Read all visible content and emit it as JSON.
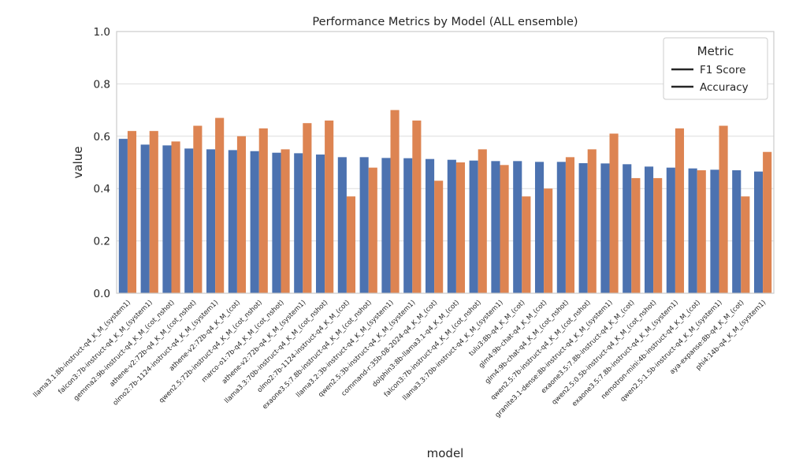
{
  "chart_data": {
    "type": "bar",
    "title": "Performance Metrics by Model (ALL ensemble)",
    "xlabel": "model",
    "ylabel": "value",
    "ylim": [
      0,
      1.0
    ],
    "yticks": [
      "0.0",
      "0.2",
      "0.4",
      "0.6",
      "0.8",
      "1.0"
    ],
    "grid": true,
    "legend": {
      "title": "Metric",
      "placement": "top-right",
      "entries": [
        "F1 Score",
        "Accuracy"
      ]
    },
    "categories": [
      "llama3.1:8b-instruct-q4_K_M_(system1)",
      "falcon3:7b-instruct-q4_K_M_(system1)",
      "gemma2:9b-instruct-q4_K_M_(cot_nshot)",
      "athene-v2:72b-q4_K_M_(cot_nshot)",
      "olmo2:7b-1124-instruct-q4_K_M_(system1)",
      "athene-v2:72b-q4_K_M_(cot)",
      "qwen2.5:72b-instruct-q4_K_M_(cot_nshot)",
      "marco-o1:7b-q4_K_M_(cot_nshot)",
      "athene-v2:72b-q4_K_M_(system1)",
      "llama3.3:70b-instruct-q4_K_M_(cot_nshot)",
      "olmo2:7b-1124-instruct-q4_K_M_(cot)",
      "exaone3.5:7.8b-instruct-q4_K_M_(cot_nshot)",
      "llama3.2:3b-instruct-q4_K_M_(system1)",
      "qwen2.5:3b-instruct-q4_K_M_(system1)",
      "command-r:35b-08-2024-q4_K_M_(cot)",
      "dolphin3:8b-llama3.1-q4_K_M_(cot)",
      "falcon3:7b-instruct-q4_K_M_(cot_nshot)",
      "llama3.3:70b-instruct-q4_K_M_(system1)",
      "tulu3:8b-q4_K_M_(cot)",
      "glm4:9b-chat-q4_K_M_(cot)",
      "glm4:9b-chat-q4_K_M_(cot_nshot)",
      "qwen2.5:7b-instruct-q4_K_M_(cot_nshot)",
      "granite3.1-dense:8b-instruct-q4_K_M_(system1)",
      "exaone3.5:7.8b-instruct-q4_K_M_(cot)",
      "qwen2.5:0.5b-instruct-q4_K_M_(cot_nshot)",
      "exaone3.5:7.8b-instruct-q4_K_M_(system1)",
      "nemotron-mini:4b-instruct-q4_K_M_(cot)",
      "qwen2.5:1.5b-instruct-q4_K_M_(system1)",
      "aya-expanse:8b-q4_K_M_(cot)",
      "phi4:14b-q4_K_M_(system1)"
    ],
    "series": [
      {
        "name": "F1 Score",
        "color": "#4c72b0",
        "values": [
          0.59,
          0.568,
          0.565,
          0.553,
          0.55,
          0.547,
          0.543,
          0.537,
          0.535,
          0.53,
          0.52,
          0.52,
          0.517,
          0.516,
          0.513,
          0.51,
          0.507,
          0.505,
          0.505,
          0.502,
          0.502,
          0.497,
          0.496,
          0.493,
          0.484,
          0.48,
          0.477,
          0.472,
          0.47,
          0.465
        ]
      },
      {
        "name": "Accuracy",
        "color": "#dd8452",
        "values": [
          0.62,
          0.62,
          0.58,
          0.64,
          0.67,
          0.6,
          0.63,
          0.55,
          0.65,
          0.66,
          0.37,
          0.48,
          0.7,
          0.66,
          0.43,
          0.5,
          0.55,
          0.49,
          0.37,
          0.4,
          0.52,
          0.55,
          0.61,
          0.44,
          0.44,
          0.63,
          0.47,
          0.64,
          0.37,
          0.54
        ]
      }
    ]
  }
}
